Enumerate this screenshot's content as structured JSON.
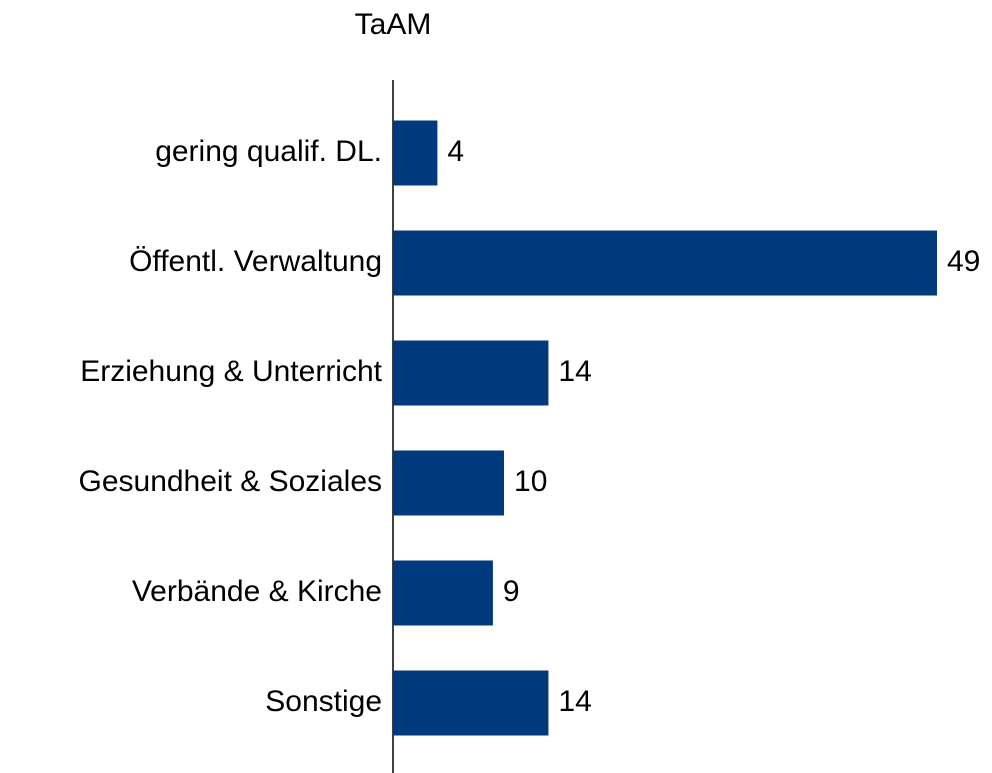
{
  "chart_data": {
    "type": "bar",
    "orientation": "horizontal",
    "title": "TaAM",
    "categories": [
      "gering qualif. DL.",
      "Öffentl. Verwaltung",
      "Erziehung & Unterricht",
      "Gesundheit & Soziales",
      "Verbände & Kirche",
      "Sonstige"
    ],
    "values": [
      4,
      49,
      14,
      10,
      9,
      14
    ],
    "color": "#003a7d"
  }
}
